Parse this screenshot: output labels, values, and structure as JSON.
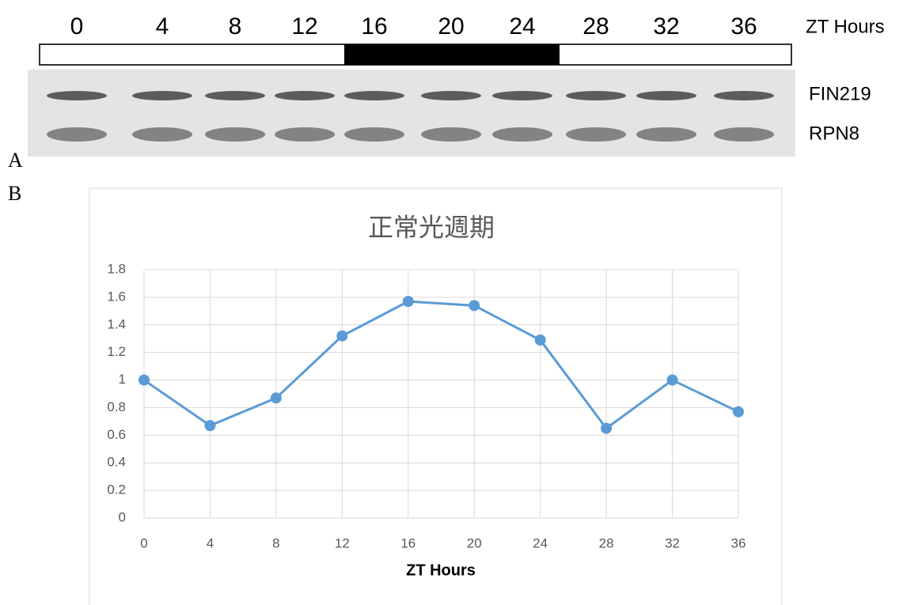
{
  "figure": {
    "panel_a": "A",
    "panel_b": "B"
  },
  "blot": {
    "lanes": [
      "0",
      "4",
      "8",
      "12",
      "16",
      "20",
      "24",
      "28",
      "32",
      "36"
    ],
    "lanes_title": "ZT Hours",
    "rows": [
      "FIN219",
      "RPN8"
    ]
  },
  "chart_data": {
    "type": "line",
    "title": "正常光週期",
    "xlabel": "ZT Hours",
    "x": [
      0,
      4,
      8,
      12,
      16,
      20,
      24,
      28,
      32,
      36
    ],
    "series": [
      {
        "color": "#5b9bd5",
        "values": [
          1,
          0.67,
          0.87,
          1.32,
          1.57,
          1.54,
          1.29,
          0.65,
          1,
          0.77
        ]
      }
    ],
    "xlim": [
      0,
      36
    ],
    "xticks": [
      0,
      4,
      8,
      12,
      16,
      20,
      24,
      28,
      32,
      36
    ],
    "ylim": [
      0,
      1.8
    ],
    "yticks": [
      0,
      0.2,
      0.4,
      0.6,
      0.8,
      1,
      1.2,
      1.4,
      1.6,
      1.8
    ],
    "grid": true
  }
}
